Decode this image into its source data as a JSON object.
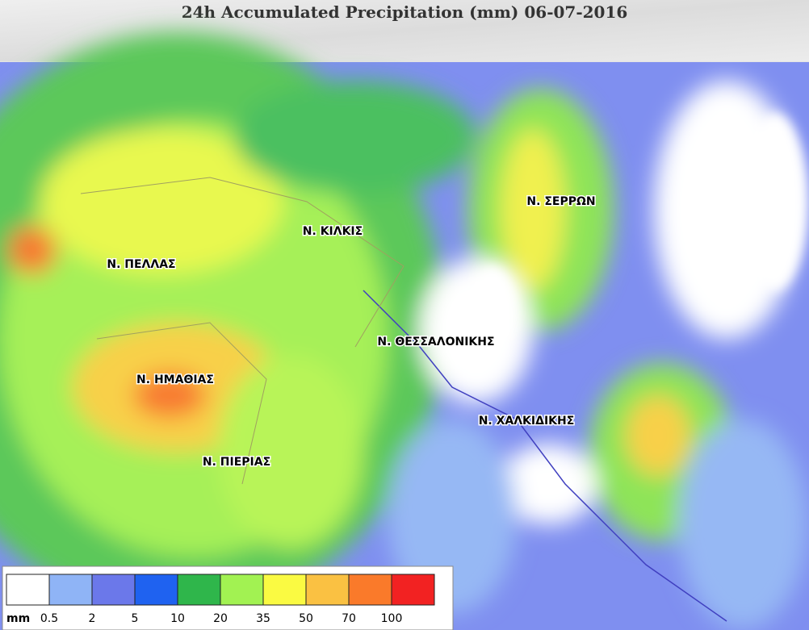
{
  "header": {
    "title": "24h Accumulated Precipitation (mm) 06-07-2016"
  },
  "regions": [
    {
      "label": "Ν. ΚΙΛΚΙΣ"
    },
    {
      "label": "Ν. ΠΕΛΛΑΣ"
    },
    {
      "label": "Ν. ΣΕΡΡΩΝ"
    },
    {
      "label": "Ν. ΘΕΣΣΑΛΟΝΙΚΗΣ"
    },
    {
      "label": "Ν. ΗΜΑΘΙΑΣ"
    },
    {
      "label": "Ν. ΧΑΛΚΙΔΙΚΗΣ"
    },
    {
      "label": "Ν. ΠΙΕΡΙΑΣ"
    }
  ],
  "legend": {
    "unit": "mm",
    "colors": [
      "#ffffff",
      "#8fb4f6",
      "#6b78ea",
      "#1f62f0",
      "#2fb64b",
      "#a2f252",
      "#fafa42",
      "#fac142",
      "#fa7a2a",
      "#f22222"
    ],
    "ticks": [
      "0.5",
      "2",
      "5",
      "10",
      "20",
      "35",
      "50",
      "70",
      "100"
    ]
  }
}
